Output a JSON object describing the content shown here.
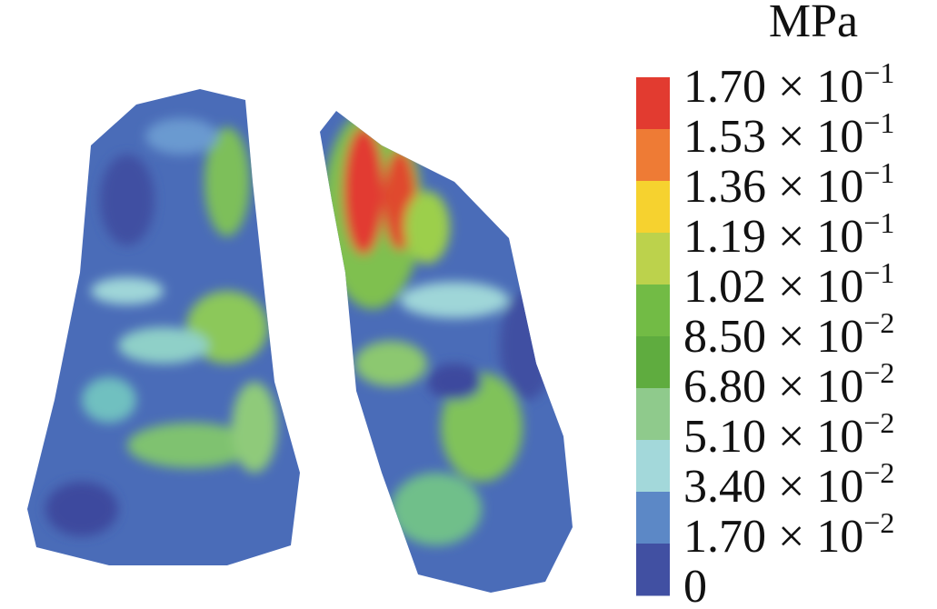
{
  "legend": {
    "unit": "MPa",
    "labels": [
      {
        "text": "1.70 × 10",
        "exponent": "−1"
      },
      {
        "text": "1.53 × 10",
        "exponent": "−1"
      },
      {
        "text": "1.36 × 10",
        "exponent": "−1"
      },
      {
        "text": "1.19 × 10",
        "exponent": "−1"
      },
      {
        "text": "1.02 × 10",
        "exponent": "−1"
      },
      {
        "text": "8.50 × 10",
        "exponent": "−2"
      },
      {
        "text": "6.80 × 10",
        "exponent": "−2"
      },
      {
        "text": "5.10 × 10",
        "exponent": "−2"
      },
      {
        "text": "3.40 × 10",
        "exponent": "−2"
      },
      {
        "text": "1.70 × 10",
        "exponent": "−2"
      },
      {
        "text": "0"
      }
    ],
    "colors": [
      "#e23b30",
      "#ee7b35",
      "#f6d22f",
      "#bcd24c",
      "#72bb45",
      "#5fac3f",
      "#8fca8c",
      "#a3d8da",
      "#5c88c6",
      "#4150a2"
    ]
  }
}
